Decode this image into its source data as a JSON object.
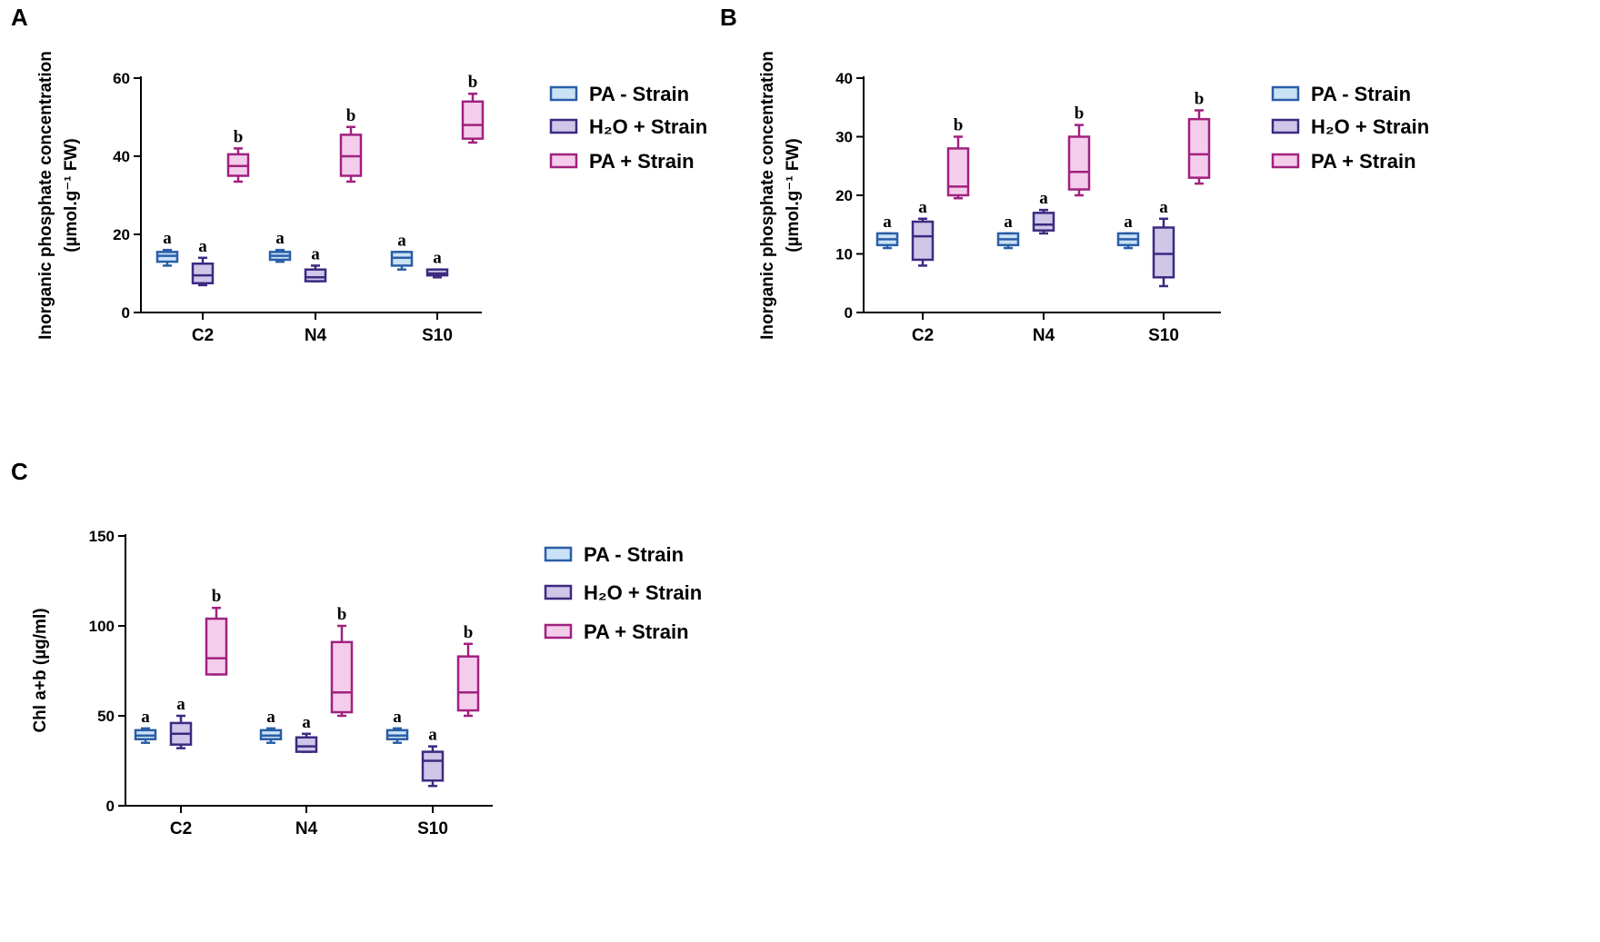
{
  "colors": {
    "pa_minus": {
      "fill": "#c9e2f5",
      "stroke": "#2a5ea8"
    },
    "h2o_plus": {
      "fill": "#cfc6e8",
      "stroke": "#3b2a80"
    },
    "pa_plus": {
      "fill": "#f5cdec",
      "stroke": "#a0217e"
    }
  },
  "chart_data": [
    {
      "type": "box",
      "panel_label": "A",
      "ylabel_line1": "Inorganic phosphate concentration",
      "ylabel_line2": "(µmol.g⁻¹ FW)",
      "ylim": [
        0,
        60
      ],
      "yticks": [
        "0",
        "20",
        "40",
        "60"
      ],
      "categories": [
        "C2",
        "N4",
        "S10"
      ],
      "legend": [
        "PA - Strain",
        "H₂O + Strain",
        "PA + Strain"
      ],
      "series": [
        {
          "name": "PA - Strain",
          "key": "pa_minus",
          "boxes": [
            {
              "min": 12,
              "q1": 13,
              "median": 14.5,
              "q3": 15.5,
              "max": 16,
              "letter": "a"
            },
            {
              "min": 13,
              "q1": 13.5,
              "median": 14.5,
              "q3": 15.5,
              "max": 16,
              "letter": "a"
            },
            {
              "min": 11,
              "q1": 12,
              "median": 14,
              "q3": 15.5,
              "max": 15.5,
              "letter": "a"
            }
          ]
        },
        {
          "name": "H₂O + Strain",
          "key": "h2o_plus",
          "boxes": [
            {
              "min": 7,
              "q1": 7.5,
              "median": 9.5,
              "q3": 12.5,
              "max": 14,
              "letter": "a"
            },
            {
              "min": 8,
              "q1": 8,
              "median": 9,
              "q3": 11,
              "max": 12,
              "letter": "a"
            },
            {
              "min": 9,
              "q1": 9.5,
              "median": 10,
              "q3": 11,
              "max": 11,
              "letter": "a"
            }
          ]
        },
        {
          "name": "PA + Strain",
          "key": "pa_plus",
          "boxes": [
            {
              "min": 33.5,
              "q1": 35,
              "median": 37.5,
              "q3": 40.5,
              "max": 42,
              "letter": "b"
            },
            {
              "min": 33.5,
              "q1": 35,
              "median": 40,
              "q3": 45.5,
              "max": 47.5,
              "letter": "b"
            },
            {
              "min": 43.5,
              "q1": 44.5,
              "median": 48,
              "q3": 54,
              "max": 56,
              "letter": "b"
            }
          ]
        }
      ]
    },
    {
      "type": "box",
      "panel_label": "B",
      "ylabel_line1": "Inorganic phosphate concentration",
      "ylabel_line2": "(µmol.g⁻¹ FW)",
      "ylim": [
        0,
        40
      ],
      "yticks": [
        "0",
        "10",
        "20",
        "30",
        "40"
      ],
      "categories": [
        "C2",
        "N4",
        "S10"
      ],
      "legend": [
        "PA - Strain",
        "H₂O + Strain",
        "PA + Strain"
      ],
      "series": [
        {
          "name": "PA - Strain",
          "key": "pa_minus",
          "boxes": [
            {
              "min": 11,
              "q1": 11.5,
              "median": 12.5,
              "q3": 13.5,
              "max": 13.5,
              "letter": "a"
            },
            {
              "min": 11,
              "q1": 11.5,
              "median": 12.5,
              "q3": 13.5,
              "max": 13.5,
              "letter": "a"
            },
            {
              "min": 11,
              "q1": 11.5,
              "median": 12.5,
              "q3": 13.5,
              "max": 13.5,
              "letter": "a"
            }
          ]
        },
        {
          "name": "H₂O + Strain",
          "key": "h2o_plus",
          "boxes": [
            {
              "min": 8,
              "q1": 9,
              "median": 13,
              "q3": 15.5,
              "max": 16,
              "letter": "a"
            },
            {
              "min": 13.5,
              "q1": 14,
              "median": 15,
              "q3": 17,
              "max": 17.5,
              "letter": "a"
            },
            {
              "min": 4.5,
              "q1": 6,
              "median": 10,
              "q3": 14.5,
              "max": 16,
              "letter": "a"
            }
          ]
        },
        {
          "name": "PA + Strain",
          "key": "pa_plus",
          "boxes": [
            {
              "min": 19.5,
              "q1": 20,
              "median": 21.5,
              "q3": 28,
              "max": 30,
              "letter": "b"
            },
            {
              "min": 20,
              "q1": 21,
              "median": 24,
              "q3": 30,
              "max": 32,
              "letter": "b"
            },
            {
              "min": 22,
              "q1": 23,
              "median": 27,
              "q3": 33,
              "max": 34.5,
              "letter": "b"
            }
          ]
        }
      ]
    },
    {
      "type": "box",
      "panel_label": "C",
      "ylabel_line1": "Chl a+b (µg/ml)",
      "ylabel_line2": "",
      "ylim": [
        0,
        150
      ],
      "yticks": [
        "0",
        "50",
        "100",
        "150"
      ],
      "categories": [
        "C2",
        "N4",
        "S10"
      ],
      "legend": [
        "PA - Strain",
        "H₂O + Strain",
        "PA + Strain"
      ],
      "series": [
        {
          "name": "PA - Strain",
          "key": "pa_minus",
          "boxes": [
            {
              "min": 35,
              "q1": 37,
              "median": 39,
              "q3": 42,
              "max": 43,
              "letter": "a"
            },
            {
              "min": 35,
              "q1": 37,
              "median": 39,
              "q3": 42,
              "max": 43,
              "letter": "a"
            },
            {
              "min": 35,
              "q1": 37,
              "median": 39,
              "q3": 42,
              "max": 43,
              "letter": "a"
            }
          ]
        },
        {
          "name": "H₂O + Strain",
          "key": "h2o_plus",
          "boxes": [
            {
              "min": 32,
              "q1": 34,
              "median": 40,
              "q3": 46,
              "max": 50,
              "letter": "a"
            },
            {
              "min": 30,
              "q1": 30,
              "median": 33,
              "q3": 38,
              "max": 40,
              "letter": "a"
            },
            {
              "min": 11,
              "q1": 14,
              "median": 25,
              "q3": 30,
              "max": 33,
              "letter": "a"
            }
          ]
        },
        {
          "name": "PA + Strain",
          "key": "pa_plus",
          "boxes": [
            {
              "min": 73,
              "q1": 73,
              "median": 82,
              "q3": 104,
              "max": 110,
              "letter": "b"
            },
            {
              "min": 50,
              "q1": 52,
              "median": 63,
              "q3": 91,
              "max": 100,
              "letter": "b"
            },
            {
              "min": 50,
              "q1": 53,
              "median": 63,
              "q3": 83,
              "max": 90,
              "letter": "b"
            }
          ]
        }
      ]
    }
  ]
}
